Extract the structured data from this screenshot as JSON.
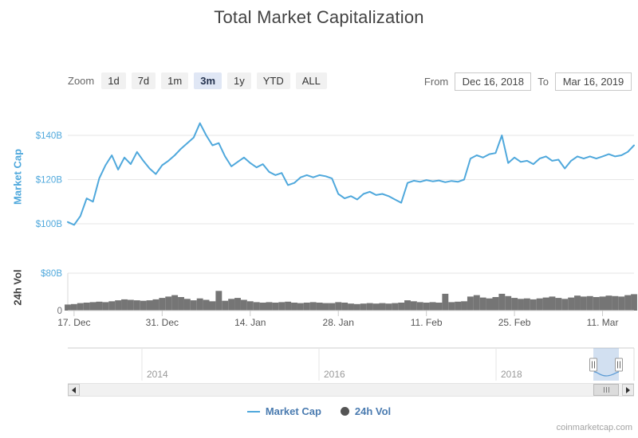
{
  "title": "Total Market Capitalization",
  "controls": {
    "zoom_label": "Zoom",
    "zoom_buttons": [
      "1d",
      "7d",
      "1m",
      "3m",
      "1y",
      "YTD",
      "ALL"
    ],
    "selected_zoom": "3m",
    "from_label": "From",
    "from_value": "Dec 16, 2018",
    "to_label": "To",
    "to_value": "Mar 16, 2019"
  },
  "legend": [
    {
      "label": "Market Cap",
      "marker": "line",
      "color": "#4fa8dc"
    },
    {
      "label": "24h Vol",
      "marker": "circle",
      "color": "#545454"
    }
  ],
  "watermark": "coinmarketcap.com",
  "chart_data": {
    "type": "line",
    "title": "Total Market Capitalization",
    "x_axis": {
      "start_date": "Dec 16, 2018",
      "end_date": "Mar 16, 2019",
      "interval": "daily",
      "tick_labels": [
        "17. Dec",
        "31. Dec",
        "14. Jan",
        "28. Jan",
        "11. Feb",
        "25. Feb",
        "11. Mar"
      ],
      "tick_indices": [
        1,
        15,
        29,
        43,
        57,
        71,
        85
      ]
    },
    "panes": [
      {
        "name": "Market Cap",
        "type": "line",
        "color": "#4fa8dc",
        "ylabel": "Market Cap",
        "unit": "USD billions",
        "ylim": [
          95,
          148
        ],
        "y_ticks": [
          {
            "value": 100,
            "label": "$100B",
            "color": "#4fa8dc"
          },
          {
            "value": 120,
            "label": "$120B",
            "color": "#4fa8dc"
          },
          {
            "value": 140,
            "label": "$140B",
            "color": "#4fa8dc"
          }
        ],
        "values": [
          100.8,
          99.5,
          103.5,
          111.5,
          110.0,
          120.5,
          126.5,
          131.0,
          124.5,
          130.0,
          127.0,
          132.5,
          128.5,
          125.0,
          122.5,
          126.5,
          128.5,
          131.0,
          134.0,
          136.5,
          139.0,
          145.5,
          140.0,
          135.5,
          136.5,
          130.5,
          126.0,
          128.0,
          130.0,
          127.5,
          125.5,
          127.0,
          123.5,
          122.0,
          123.0,
          117.5,
          118.5,
          121.0,
          122.0,
          121.0,
          122.0,
          121.5,
          120.5,
          113.5,
          111.5,
          112.5,
          111.0,
          113.5,
          114.5,
          113.0,
          113.5,
          112.5,
          111.0,
          109.5,
          118.5,
          119.5,
          119.0,
          119.8,
          119.2,
          119.6,
          118.8,
          119.4,
          119.0,
          120.0,
          129.5,
          131.0,
          130.0,
          131.5,
          132.0,
          140.0,
          127.5,
          130.0,
          128.0,
          128.5,
          127.0,
          129.5,
          130.5,
          128.5,
          129.0,
          125.0,
          128.5,
          130.5,
          129.5,
          130.5,
          129.5,
          130.5,
          131.5,
          130.5,
          131.0,
          132.5,
          135.5
        ]
      },
      {
        "name": "24h Vol",
        "type": "area",
        "color": "#757575",
        "ylabel": "24h Vol",
        "unit": "USD billions",
        "ylim": [
          0,
          80
        ],
        "y_ticks": [
          {
            "value": 0,
            "label": "0",
            "color": "#707073"
          },
          {
            "value": 80,
            "label": "$80B",
            "color": "#4fa8dc"
          }
        ],
        "values": [
          13,
          14,
          16,
          17,
          18,
          19,
          18,
          20,
          22,
          24,
          23,
          22,
          21,
          22,
          24,
          27,
          30,
          33,
          29,
          25,
          22,
          26,
          23,
          20,
          42,
          21,
          25,
          27,
          23,
          20,
          18,
          17,
          18,
          17,
          18,
          19,
          17,
          16,
          17,
          18,
          17,
          16,
          16,
          18,
          17,
          15,
          14,
          15,
          16,
          15,
          16,
          15,
          16,
          17,
          22,
          20,
          18,
          17,
          18,
          17,
          36,
          18,
          19,
          20,
          30,
          33,
          28,
          26,
          29,
          36,
          31,
          27,
          25,
          26,
          24,
          26,
          28,
          30,
          27,
          25,
          28,
          32,
          30,
          31,
          29,
          30,
          32,
          31,
          30,
          33,
          35
        ]
      }
    ],
    "navigator": {
      "year_labels": [
        "2014",
        "2016",
        "2018"
      ]
    }
  }
}
